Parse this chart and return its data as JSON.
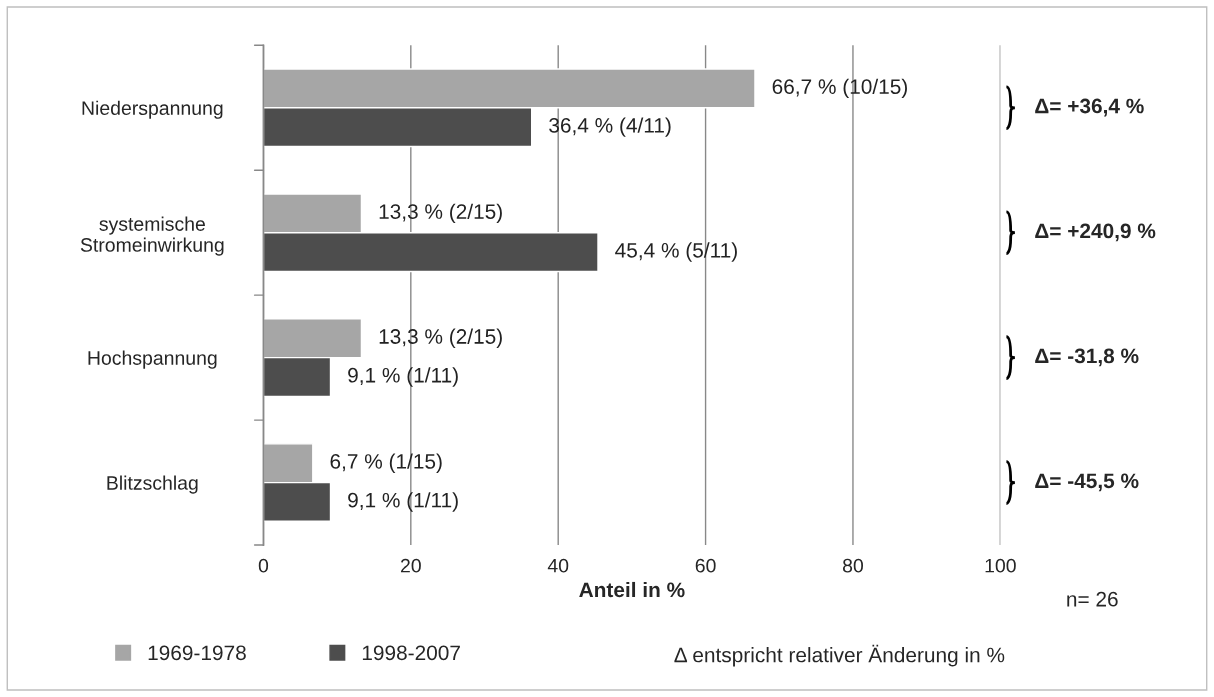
{
  "chart_data": {
    "type": "bar",
    "orientation": "horizontal",
    "categories": [
      "Niederspannung",
      "systemische\nStromeinwirkung",
      "Hochspannung",
      "Blitzschlag"
    ],
    "series": [
      {
        "name": "1969-1978",
        "color": "#a6a6a6",
        "values": [
          66.7,
          13.3,
          13.3,
          6.7
        ],
        "value_labels": [
          "66,7 % (10/15)",
          "13,3 % (2/15)",
          "13,3 % (2/15)",
          "6,7 % (1/15)"
        ]
      },
      {
        "name": "1998-2007",
        "color": "#4d4d4d",
        "values": [
          36.4,
          45.4,
          9.1,
          9.1
        ],
        "value_labels": [
          "36,4 % (4/11)",
          "45,4 % (5/11)",
          "9,1 % (1/11)",
          "9,1 % (1/11)"
        ]
      }
    ],
    "xlabel": "Anteil in %",
    "xlim": [
      0,
      100
    ],
    "xticks": [
      0,
      20,
      40,
      60,
      80,
      100
    ],
    "grid": "x",
    "legend": "bottom left",
    "annotations": [
      "Δ= +36,4 %",
      "Δ= +240,9 %",
      "Δ= -31,8 %",
      "Δ= -45,5 %",
      "n= 26",
      "Δ entspricht relativer Änderung in %"
    ]
  }
}
